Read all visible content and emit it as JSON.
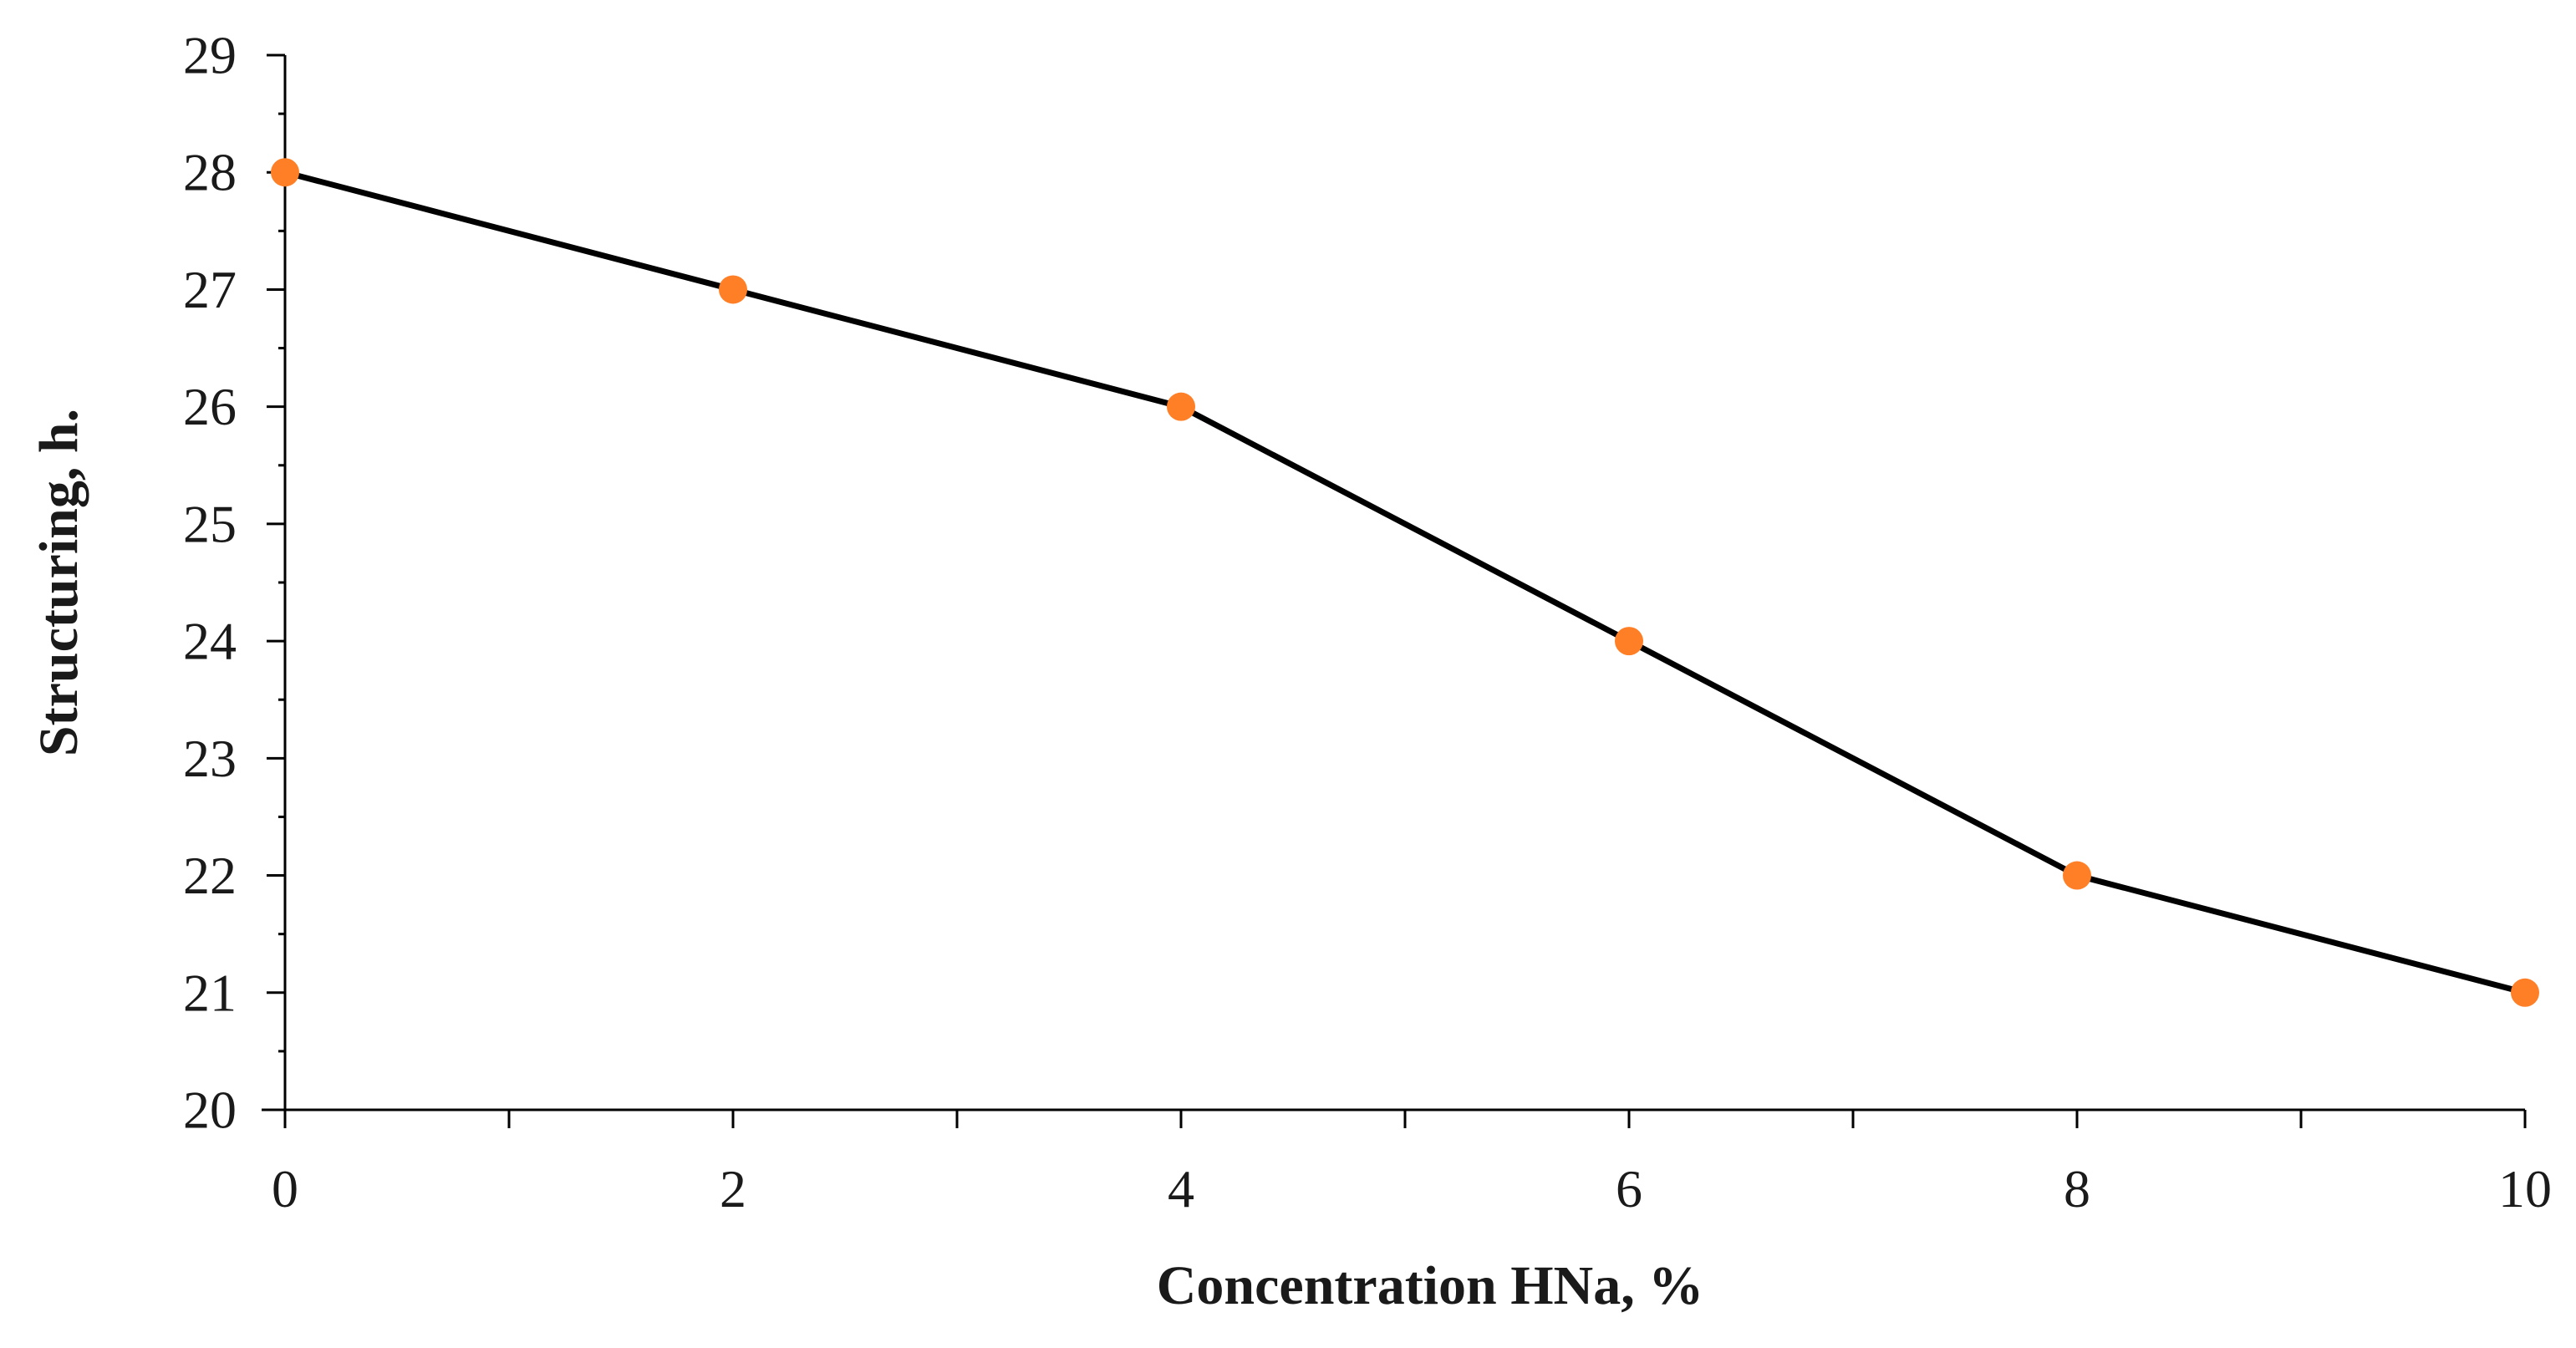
{
  "chart_data": {
    "type": "line",
    "xlabel": "Concentration HNa, %",
    "ylabel": "Structuring, h.",
    "xlim": [
      0,
      10
    ],
    "ylim": [
      20,
      29
    ],
    "x_ticks": [
      0,
      2,
      4,
      6,
      8,
      10
    ],
    "x_minor_ticks": [
      1,
      3,
      5,
      7,
      9
    ],
    "y_ticks": [
      20,
      21,
      22,
      23,
      24,
      25,
      26,
      27,
      28,
      29
    ],
    "y_minor_step": 0.5,
    "grid": false,
    "legend": "none",
    "series": [
      {
        "x": [
          0,
          2,
          4,
          6,
          8,
          10
        ],
        "values": [
          28,
          27,
          26,
          24,
          22,
          21
        ],
        "line_color": "#000000",
        "marker_color": "#FF7F27"
      }
    ]
  }
}
